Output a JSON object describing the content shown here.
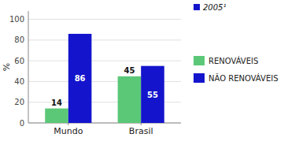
{
  "chart_data": {
    "type": "bar",
    "categories": [
      "Mundo",
      "Brasil"
    ],
    "series": [
      {
        "name": "RENOVÁVEIS",
        "color": "#5bc878",
        "values": [
          14,
          45
        ]
      },
      {
        "name": "NÃO RENOVÁVEIS",
        "color": "#1414cc",
        "values": [
          86,
          55
        ]
      }
    ],
    "y_label": "%",
    "annotation": "2005¹",
    "ylim": [
      0,
      108
    ],
    "yticks": [
      0,
      20,
      40,
      60,
      80,
      100
    ],
    "grid": true,
    "legend": "right",
    "data_labels": true
  }
}
